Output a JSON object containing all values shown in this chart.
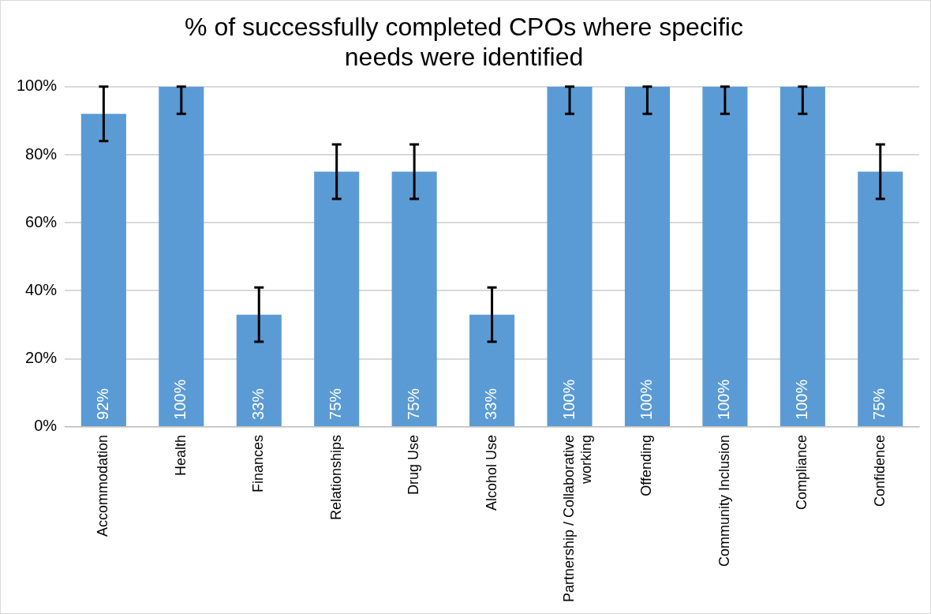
{
  "chart_data": {
    "type": "bar",
    "title": "% of successfully completed CPOs where specific needs were identified",
    "categories": [
      "Accommodation",
      "Health",
      "Finances",
      "Relationships",
      "Drug Use",
      "Alcohol Use",
      "Partnership / Collaborative working",
      "Offending",
      "Community Inclusion",
      "Compliance",
      "Confidence"
    ],
    "values": [
      92,
      100,
      33,
      75,
      75,
      33,
      100,
      100,
      100,
      100,
      75
    ],
    "value_labels": [
      "92%",
      "100%",
      "33%",
      "75%",
      "75%",
      "33%",
      "100%",
      "100%",
      "100%",
      "100%",
      "75%"
    ],
    "errors": [
      [
        84,
        100
      ],
      [
        92,
        100
      ],
      [
        25,
        41
      ],
      [
        67,
        83
      ],
      [
        67,
        83
      ],
      [
        25,
        41
      ],
      [
        92,
        100
      ],
      [
        92,
        100
      ],
      [
        92,
        100
      ],
      [
        92,
        100
      ],
      [
        67,
        83
      ]
    ],
    "color": "#5b9bd5",
    "ylim": [
      0,
      100
    ],
    "yticks": [
      {
        "value": 0,
        "label": "0%"
      },
      {
        "value": 20,
        "label": "20%"
      },
      {
        "value": 40,
        "label": "40%"
      },
      {
        "value": 60,
        "label": "60%"
      },
      {
        "value": 80,
        "label": "80%"
      },
      {
        "value": 100,
        "label": "100%"
      }
    ],
    "grid": "y",
    "legend": false
  }
}
